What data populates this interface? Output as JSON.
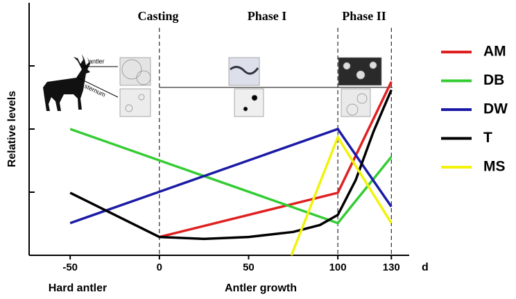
{
  "chart_data": {
    "type": "line",
    "ylabel": "Relative levels",
    "x_unit": "d",
    "phase_labels": [
      "Casting",
      "Phase I",
      "Phase II"
    ],
    "period_labels": [
      "Hard antler",
      "Antler growth"
    ],
    "image_labels": [
      "antler",
      "sternum"
    ],
    "xlim": [
      -73,
      140
    ],
    "xticks": [
      -50,
      0,
      50,
      100,
      130
    ],
    "ylim": [
      0,
      4
    ],
    "yticks": [
      1,
      2,
      3
    ],
    "show_ytick_labels": false,
    "series": [
      {
        "name": "AM",
        "color": "#e02020",
        "x": [
          0,
          100,
          130
        ],
        "values": [
          0.29,
          0.99,
          2.75
        ]
      },
      {
        "name": "DB",
        "color": "#33cc33",
        "x": [
          -50,
          100,
          130
        ],
        "values": [
          2.0,
          0.51,
          1.56
        ]
      },
      {
        "name": "DW",
        "color": "#1a1aa6",
        "x": [
          -50,
          100,
          130
        ],
        "values": [
          0.51,
          2.0,
          0.77
        ]
      },
      {
        "name": "T",
        "color": "#000000",
        "x": [
          -50,
          0,
          25,
          50,
          75,
          90,
          100,
          110,
          120,
          130
        ],
        "values": [
          0.99,
          0.29,
          0.26,
          0.29,
          0.37,
          0.48,
          0.64,
          1.19,
          1.96,
          2.62
        ]
      },
      {
        "name": "MS",
        "color": "#f2f20a",
        "x": [
          74,
          100,
          130
        ],
        "values": [
          0,
          1.87,
          0.51
        ]
      }
    ]
  }
}
